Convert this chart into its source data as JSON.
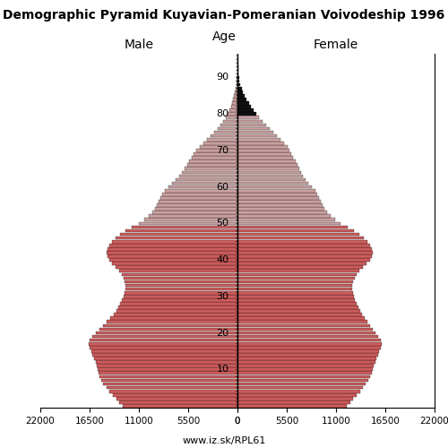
{
  "title": "Demographic Pyramid Kuyavian-Pomeranian Voivodeship 1996",
  "male_label": "Male",
  "female_label": "Female",
  "age_label": "Age",
  "footer": "www.iz.sk/RPL61",
  "xlim": 22000,
  "ages": [
    0,
    1,
    2,
    3,
    4,
    5,
    6,
    7,
    8,
    9,
    10,
    11,
    12,
    13,
    14,
    15,
    16,
    17,
    18,
    19,
    20,
    21,
    22,
    23,
    24,
    25,
    26,
    27,
    28,
    29,
    30,
    31,
    32,
    33,
    34,
    35,
    36,
    37,
    38,
    39,
    40,
    41,
    42,
    43,
    44,
    45,
    46,
    47,
    48,
    49,
    50,
    51,
    52,
    53,
    54,
    55,
    56,
    57,
    58,
    59,
    60,
    61,
    62,
    63,
    64,
    65,
    66,
    67,
    68,
    69,
    70,
    71,
    72,
    73,
    74,
    75,
    76,
    77,
    78,
    79,
    80,
    81,
    82,
    83,
    84,
    85,
    86,
    87,
    88,
    89,
    90,
    91,
    92,
    93,
    94,
    95
  ],
  "male": [
    12800,
    13200,
    13500,
    13900,
    14300,
    14600,
    15000,
    15200,
    15400,
    15500,
    15600,
    15700,
    15800,
    16000,
    16200,
    16300,
    16500,
    16600,
    16500,
    16200,
    15800,
    15400,
    15000,
    14600,
    14200,
    13800,
    13500,
    13300,
    13100,
    12900,
    12700,
    12600,
    12500,
    12500,
    12600,
    12700,
    12900,
    13200,
    13600,
    14000,
    14300,
    14500,
    14600,
    14500,
    14300,
    14000,
    13600,
    13100,
    12500,
    11800,
    11000,
    10400,
    9900,
    9500,
    9200,
    9000,
    8800,
    8600,
    8400,
    8100,
    7700,
    7300,
    6900,
    6500,
    6200,
    5900,
    5600,
    5400,
    5100,
    4900,
    4600,
    4200,
    3800,
    3400,
    3000,
    2600,
    2200,
    1900,
    1600,
    1300,
    1100,
    900,
    750,
    600,
    480,
    380,
    290,
    210,
    150,
    100,
    70,
    50,
    35,
    25,
    15,
    10
  ],
  "female": [
    12200,
    12600,
    12900,
    13300,
    13700,
    14000,
    14300,
    14600,
    14800,
    15000,
    15100,
    15200,
    15400,
    15500,
    15700,
    15800,
    16000,
    16100,
    16000,
    15700,
    15400,
    15100,
    14800,
    14500,
    14200,
    13900,
    13700,
    13500,
    13300,
    13100,
    13000,
    12900,
    12800,
    12800,
    12900,
    13100,
    13300,
    13600,
    14000,
    14400,
    14800,
    15000,
    15100,
    15000,
    14800,
    14500,
    14100,
    13600,
    13000,
    12300,
    11500,
    10900,
    10400,
    10000,
    9700,
    9500,
    9300,
    9100,
    8900,
    8700,
    8300,
    7900,
    7600,
    7300,
    7100,
    6900,
    6700,
    6500,
    6200,
    6000,
    5800,
    5600,
    5200,
    4800,
    4400,
    4000,
    3600,
    3200,
    2800,
    2400,
    2100,
    1800,
    1500,
    1250,
    1000,
    800,
    620,
    460,
    330,
    230,
    160,
    110,
    75,
    50,
    30,
    20
  ],
  "age_ticks": [
    10,
    20,
    30,
    40,
    50,
    60,
    70,
    80,
    90
  ],
  "xtick_vals": [
    0,
    5500,
    11000,
    16500,
    22000
  ],
  "color_young": "#cd5c5c",
  "color_old": "#c9a0a0",
  "color_black": "#111111",
  "age_threshold_red": 49,
  "age_threshold_old": 79
}
